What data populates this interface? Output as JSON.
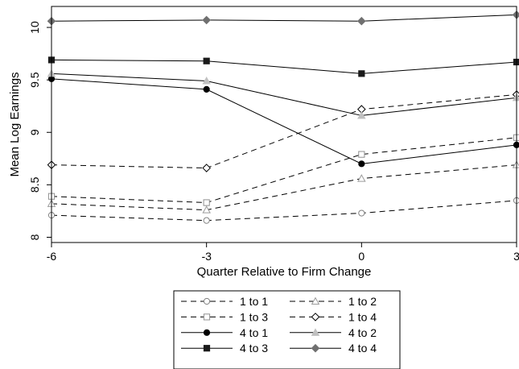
{
  "chart_data": {
    "type": "line",
    "title": "",
    "xlabel": "Quarter Relative to Firm Change",
    "ylabel": "Mean Log Earnings",
    "x": [
      -6,
      -3,
      0,
      3
    ],
    "x_ticks": [
      -6,
      -3,
      0,
      3
    ],
    "x_tick_labels": [
      "-6",
      "-3",
      "0",
      "3"
    ],
    "y_ticks": [
      8,
      8.5,
      9,
      9.5,
      10
    ],
    "y_tick_labels": [
      "8",
      "8.5",
      "9",
      "9.5",
      "10"
    ],
    "xlim": [
      -6,
      3
    ],
    "ylim": [
      7.95,
      10.2
    ],
    "grid": false,
    "legend_position": "bottom",
    "series": [
      {
        "name": "1 to 1",
        "values": [
          8.21,
          8.16,
          8.23,
          8.35
        ],
        "line": "dashed",
        "marker": "circle",
        "filled": false,
        "color": "#808080"
      },
      {
        "name": "1 to 2",
        "values": [
          8.32,
          8.26,
          8.56,
          8.69
        ],
        "line": "dashed",
        "marker": "triangle",
        "filled": false,
        "color": "#9a9a9a"
      },
      {
        "name": "1 to 3",
        "values": [
          8.39,
          8.33,
          8.79,
          8.95
        ],
        "line": "dashed",
        "marker": "square",
        "filled": false,
        "color": "#909090"
      },
      {
        "name": "1 to 4",
        "values": [
          8.69,
          8.66,
          9.22,
          9.36
        ],
        "line": "dashed",
        "marker": "diamond",
        "filled": false,
        "color": "#000000"
      },
      {
        "name": "4 to 1",
        "values": [
          9.51,
          9.41,
          8.7,
          8.88
        ],
        "line": "solid",
        "marker": "circle",
        "filled": true,
        "color": "#000000"
      },
      {
        "name": "4 to 2",
        "values": [
          9.56,
          9.49,
          9.16,
          9.33
        ],
        "line": "solid",
        "marker": "triangle",
        "filled": true,
        "color": "#c0c0c0"
      },
      {
        "name": "4 to 3",
        "values": [
          9.69,
          9.68,
          9.56,
          9.67
        ],
        "line": "solid",
        "marker": "square",
        "filled": true,
        "color": "#1a1a1a"
      },
      {
        "name": "4 to 4",
        "values": [
          10.06,
          10.07,
          10.06,
          10.12
        ],
        "line": "solid",
        "marker": "diamond",
        "filled": true,
        "color": "#707070"
      }
    ]
  }
}
